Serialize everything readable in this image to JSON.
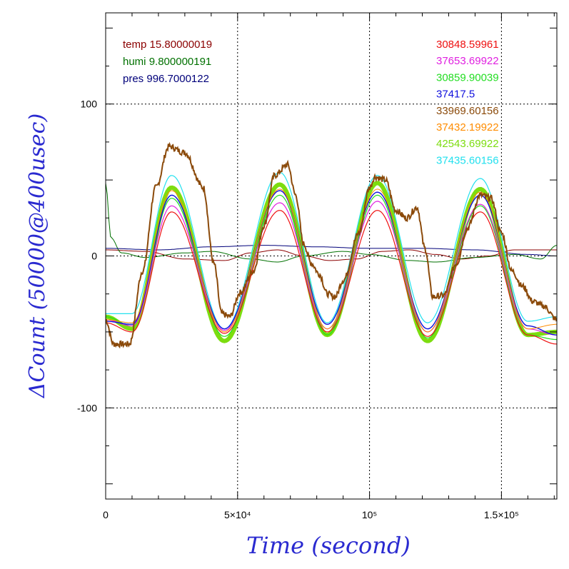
{
  "chart_data": {
    "type": "line",
    "xlabel": "Time (second)",
    "ylabel": "ΔCount (50000@400usec)",
    "xlim": [
      0,
      171000
    ],
    "ylim": [
      -160,
      160
    ],
    "grid": true,
    "legend_placement": "top-left and top-right",
    "x_ticks": [
      {
        "value": 0,
        "label": "0"
      },
      {
        "value": 50000,
        "label": "5×10⁴"
      },
      {
        "value": 100000,
        "label": "10⁵"
      },
      {
        "value": 150000,
        "label": "1.5×10⁵"
      }
    ],
    "y_ticks": [
      {
        "value": 100,
        "label": "100"
      },
      {
        "value": 0,
        "label": "0"
      },
      {
        "value": -100,
        "label": "-100"
      }
    ],
    "env_legend": [
      {
        "name": "temp",
        "value": "15.80000019",
        "color": "#8b0000"
      },
      {
        "name": "humi",
        "value": "9.800000191",
        "color": "#007000"
      },
      {
        "name": "pres",
        "value": "996.7000122",
        "color": "#00007a"
      }
    ],
    "series": [
      {
        "name": "30848.59961",
        "color": "#ee1111",
        "offset": 0,
        "amp": 40,
        "width": 1.2,
        "noise": 0,
        "points": [
          [
            0,
            -44
          ],
          [
            10000,
            -50
          ],
          [
            25000,
            29
          ],
          [
            45000,
            -51
          ],
          [
            66000,
            30
          ],
          [
            84000,
            -50
          ],
          [
            103000,
            30
          ],
          [
            122000,
            -53
          ],
          [
            142000,
            29
          ],
          [
            160000,
            -52
          ],
          [
            171000,
            -58
          ]
        ]
      },
      {
        "name": "37653.69922",
        "color": "#e020e0",
        "offset": 0,
        "amp": 45,
        "width": 1.2,
        "noise": 0,
        "points": [
          [
            0,
            -42
          ],
          [
            10000,
            -46
          ],
          [
            25000,
            33
          ],
          [
            45000,
            -49
          ],
          [
            66000,
            35
          ],
          [
            84000,
            -48
          ],
          [
            103000,
            36
          ],
          [
            122000,
            -50
          ],
          [
            142000,
            34
          ],
          [
            160000,
            -48
          ],
          [
            171000,
            -52
          ]
        ]
      },
      {
        "name": "30859.90039",
        "color": "#22dd22",
        "offset": 0,
        "amp": 45,
        "width": 1.2,
        "noise": 0,
        "points": [
          [
            0,
            -40
          ],
          [
            10000,
            -46
          ],
          [
            25000,
            38
          ],
          [
            45000,
            -53
          ],
          [
            66000,
            40
          ],
          [
            84000,
            -52
          ],
          [
            103000,
            40
          ],
          [
            122000,
            -54
          ],
          [
            142000,
            33
          ],
          [
            160000,
            -52
          ],
          [
            171000,
            -55
          ]
        ]
      },
      {
        "name": "37417.5",
        "color": "#1010dd",
        "offset": 0,
        "amp": 45,
        "width": 1.4,
        "noise": 0,
        "points": [
          [
            0,
            -43
          ],
          [
            10000,
            -45
          ],
          [
            25000,
            40
          ],
          [
            45000,
            -48
          ],
          [
            66000,
            43
          ],
          [
            84000,
            -45
          ],
          [
            103000,
            42
          ],
          [
            122000,
            -48
          ],
          [
            142000,
            40
          ],
          [
            160000,
            -46
          ],
          [
            171000,
            -52
          ]
        ]
      },
      {
        "name": "33969.60156",
        "color": "#8b4a0a",
        "offset": 0,
        "amp": 55,
        "width": 2.0,
        "noise": 1,
        "points": [
          [
            0,
            -42
          ],
          [
            3000,
            -58
          ],
          [
            9000,
            -58
          ],
          [
            14000,
            -10
          ],
          [
            19000,
            45
          ],
          [
            24000,
            72
          ],
          [
            30000,
            68
          ],
          [
            37000,
            45
          ],
          [
            41000,
            -5
          ],
          [
            44000,
            -38
          ],
          [
            47000,
            -40
          ],
          [
            51000,
            -24
          ],
          [
            56000,
            -10
          ],
          [
            60000,
            20
          ],
          [
            64000,
            53
          ],
          [
            69000,
            60
          ],
          [
            72000,
            40
          ],
          [
            75000,
            8
          ],
          [
            78000,
            -5
          ],
          [
            81000,
            -12
          ],
          [
            84000,
            -25
          ],
          [
            87000,
            -27
          ],
          [
            90000,
            -16
          ],
          [
            96000,
            15
          ],
          [
            100000,
            45
          ],
          [
            102000,
            52
          ],
          [
            106000,
            50
          ],
          [
            110000,
            30
          ],
          [
            114000,
            25
          ],
          [
            118000,
            32
          ],
          [
            121000,
            5
          ],
          [
            124000,
            -27
          ],
          [
            128000,
            -26
          ],
          [
            133000,
            -5
          ],
          [
            137000,
            18
          ],
          [
            142000,
            40
          ],
          [
            146000,
            38
          ],
          [
            150000,
            15
          ],
          [
            154000,
            -10
          ],
          [
            158000,
            -20
          ],
          [
            162000,
            -30
          ],
          [
            166000,
            -33
          ],
          [
            171000,
            -42
          ]
        ]
      },
      {
        "name": "37432.19922",
        "color": "#ff8c00",
        "offset": 0,
        "amp": 45,
        "width": 1.0,
        "noise": 0,
        "points": [
          [
            0,
            -42
          ],
          [
            10000,
            -44
          ],
          [
            25000,
            43
          ],
          [
            45000,
            -50
          ],
          [
            66000,
            44
          ],
          [
            84000,
            -48
          ],
          [
            103000,
            44
          ],
          [
            122000,
            -50
          ],
          [
            142000,
            42
          ],
          [
            160000,
            -48
          ],
          [
            171000,
            -45
          ]
        ]
      },
      {
        "name": "42543.69922",
        "color": "#7cdd0f",
        "offset": 0,
        "amp": 45,
        "width": 6.0,
        "noise": 0,
        "points": [
          [
            0,
            -40
          ],
          [
            10000,
            -48
          ],
          [
            25000,
            45
          ],
          [
            45000,
            -56
          ],
          [
            66000,
            47
          ],
          [
            84000,
            -52
          ],
          [
            103000,
            48
          ],
          [
            122000,
            -56
          ],
          [
            142000,
            44
          ],
          [
            160000,
            -52
          ],
          [
            171000,
            -50
          ]
        ]
      },
      {
        "name": "37435.60156",
        "color": "#22e0ee",
        "offset": 0,
        "amp": 50,
        "width": 1.2,
        "noise": 0,
        "points": [
          [
            0,
            -38
          ],
          [
            10000,
            -38
          ],
          [
            25000,
            53
          ],
          [
            45000,
            -48
          ],
          [
            66000,
            55
          ],
          [
            84000,
            -44
          ],
          [
            103000,
            53
          ],
          [
            122000,
            -44
          ],
          [
            142000,
            51
          ],
          [
            160000,
            -43
          ],
          [
            171000,
            -40
          ]
        ]
      }
    ],
    "env_series": [
      {
        "name": "temp",
        "color": "#8b0000",
        "points": [
          [
            0,
            4
          ],
          [
            15000,
            3
          ],
          [
            30000,
            -2
          ],
          [
            45000,
            -3
          ],
          [
            55000,
            2
          ],
          [
            65000,
            4
          ],
          [
            75000,
            0
          ],
          [
            85000,
            -3
          ],
          [
            95000,
            -2
          ],
          [
            105000,
            3
          ],
          [
            115000,
            4
          ],
          [
            125000,
            1
          ],
          [
            135000,
            -2
          ],
          [
            145000,
            0
          ],
          [
            155000,
            4
          ],
          [
            171000,
            4
          ]
        ]
      },
      {
        "name": "humi",
        "color": "#007000",
        "points": [
          [
            0,
            48
          ],
          [
            2000,
            12
          ],
          [
            6000,
            2
          ],
          [
            15000,
            -1
          ],
          [
            30000,
            2
          ],
          [
            40000,
            3
          ],
          [
            55000,
            -2
          ],
          [
            65000,
            -4
          ],
          [
            75000,
            0
          ],
          [
            90000,
            3
          ],
          [
            100000,
            1
          ],
          [
            115000,
            -3
          ],
          [
            125000,
            -4
          ],
          [
            140000,
            -1
          ],
          [
            155000,
            1
          ],
          [
            165000,
            -2
          ],
          [
            171000,
            7
          ]
        ]
      },
      {
        "name": "pres",
        "color": "#00007a",
        "points": [
          [
            0,
            5
          ],
          [
            20000,
            4
          ],
          [
            40000,
            6
          ],
          [
            60000,
            7
          ],
          [
            80000,
            6
          ],
          [
            100000,
            5
          ],
          [
            120000,
            5
          ],
          [
            140000,
            4
          ],
          [
            160000,
            1
          ],
          [
            171000,
            0
          ]
        ]
      }
    ]
  }
}
